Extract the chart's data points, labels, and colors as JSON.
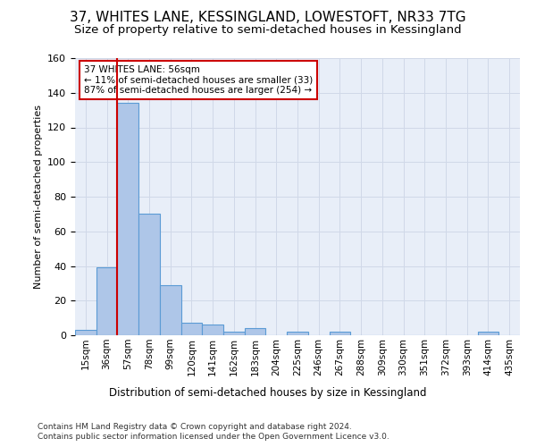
{
  "title": "37, WHITES LANE, KESSINGLAND, LOWESTOFT, NR33 7TG",
  "subtitle": "Size of property relative to semi-detached houses in Kessingland",
  "xlabel": "Distribution of semi-detached houses by size in Kessingland",
  "ylabel": "Number of semi-detached properties",
  "footnote1": "Contains HM Land Registry data © Crown copyright and database right 2024.",
  "footnote2": "Contains public sector information licensed under the Open Government Licence v3.0.",
  "bar_labels": [
    "15sqm",
    "36sqm",
    "57sqm",
    "78sqm",
    "99sqm",
    "120sqm",
    "141sqm",
    "162sqm",
    "183sqm",
    "204sqm",
    "225sqm",
    "246sqm",
    "267sqm",
    "288sqm",
    "309sqm",
    "330sqm",
    "351sqm",
    "372sqm",
    "393sqm",
    "414sqm",
    "435sqm"
  ],
  "bar_values": [
    3,
    39,
    134,
    70,
    29,
    7,
    6,
    2,
    4,
    0,
    2,
    0,
    2,
    0,
    0,
    0,
    0,
    0,
    0,
    2,
    0
  ],
  "bar_color": "#aec6e8",
  "bar_edge_color": "#5b9bd5",
  "highlight_color": "#cc0000",
  "annotation_text": "37 WHITES LANE: 56sqm\n← 11% of semi-detached houses are smaller (33)\n87% of semi-detached houses are larger (254) →",
  "annotation_box_color": "#cc0000",
  "ylim": [
    0,
    160
  ],
  "yticks": [
    0,
    20,
    40,
    60,
    80,
    100,
    120,
    140,
    160
  ],
  "grid_color": "#d0d8e8",
  "background_color": "#e8eef8",
  "fig_background": "#ffffff",
  "title_fontsize": 11,
  "subtitle_fontsize": 9.5
}
